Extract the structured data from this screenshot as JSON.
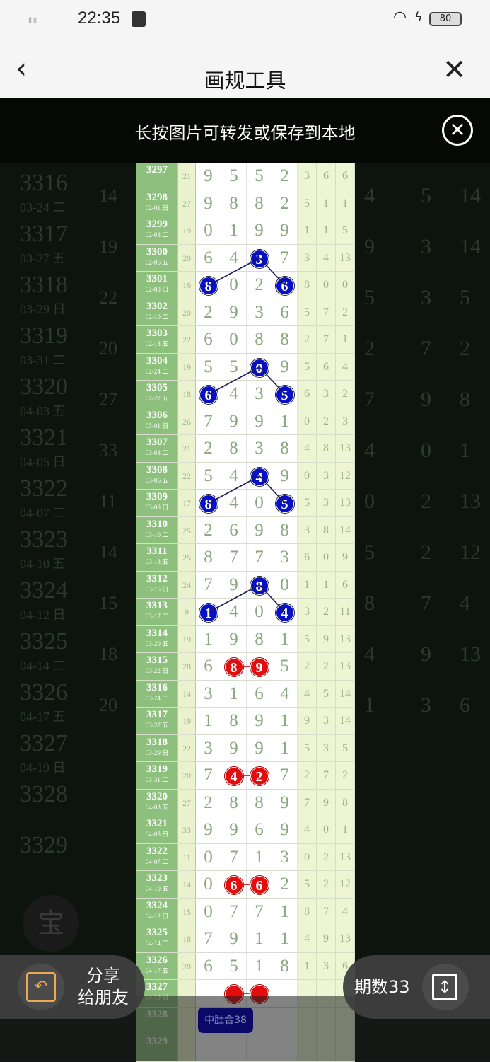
{
  "status_bar": {
    "signal": "ııl ııl",
    "time": "22:35",
    "battery": "80"
  },
  "nav": {
    "back_icon": "chevron-left",
    "title": "画规工具",
    "close_icon": "close-x"
  },
  "toast": {
    "text": "长按图片可转发或保存到本地",
    "close_icon": "circle-x"
  },
  "colors": {
    "issue_col": "#8cc07c",
    "blue_ball": "#0710c4",
    "red_ball": "#e30d0d",
    "zhong_button": "#0a0a66",
    "share_icon": "#f0a850"
  },
  "table": {
    "rows": [
      {
        "issue": "3297",
        "date": "",
        "sum": "21",
        "digits": [
          "9",
          "5",
          "5",
          "2"
        ],
        "extra": [
          "3",
          "6",
          "6"
        ]
      },
      {
        "issue": "3298",
        "date": "02-01 日",
        "sum": "27",
        "digits": [
          "9",
          "8",
          "8",
          "2"
        ],
        "extra": [
          "5",
          "1",
          "1"
        ]
      },
      {
        "issue": "3299",
        "date": "02-03 二",
        "sum": "19",
        "digits": [
          "0",
          "1",
          "9",
          "9"
        ],
        "extra": [
          "1",
          "1",
          "5"
        ]
      },
      {
        "issue": "3300",
        "date": "02-06 五",
        "sum": "20",
        "digits": [
          "6",
          "4",
          "3",
          "7"
        ],
        "extra": [
          "3",
          "4",
          "13"
        ]
      },
      {
        "issue": "3301",
        "date": "02-08 日",
        "sum": "16",
        "digits": [
          "8",
          "0",
          "2",
          "6"
        ],
        "extra": [
          "8",
          "0",
          "0"
        ]
      },
      {
        "issue": "3302",
        "date": "02-10 二",
        "sum": "20",
        "digits": [
          "2",
          "9",
          "3",
          "6"
        ],
        "extra": [
          "5",
          "7",
          "2"
        ]
      },
      {
        "issue": "3303",
        "date": "02-13 五",
        "sum": "22",
        "digits": [
          "6",
          "0",
          "8",
          "8"
        ],
        "extra": [
          "2",
          "7",
          "1"
        ]
      },
      {
        "issue": "3304",
        "date": "02-24 二",
        "sum": "19",
        "digits": [
          "5",
          "5",
          "0",
          "9"
        ],
        "extra": [
          "5",
          "6",
          "4"
        ]
      },
      {
        "issue": "3305",
        "date": "02-27 五",
        "sum": "18",
        "digits": [
          "6",
          "4",
          "3",
          "5"
        ],
        "extra": [
          "6",
          "3",
          "2"
        ]
      },
      {
        "issue": "3306",
        "date": "03-01 日",
        "sum": "26",
        "digits": [
          "7",
          "9",
          "9",
          "1"
        ],
        "extra": [
          "0",
          "2",
          "3"
        ]
      },
      {
        "issue": "3307",
        "date": "03-03 二",
        "sum": "21",
        "digits": [
          "2",
          "8",
          "3",
          "8"
        ],
        "extra": [
          "4",
          "8",
          "13"
        ]
      },
      {
        "issue": "3308",
        "date": "03-06 五",
        "sum": "22",
        "digits": [
          "5",
          "4",
          "4",
          "9"
        ],
        "extra": [
          "0",
          "3",
          "12"
        ]
      },
      {
        "issue": "3309",
        "date": "03-08 日",
        "sum": "17",
        "digits": [
          "8",
          "4",
          "0",
          "5"
        ],
        "extra": [
          "5",
          "3",
          "13"
        ]
      },
      {
        "issue": "3310",
        "date": "03-10 二",
        "sum": "25",
        "digits": [
          "2",
          "6",
          "9",
          "8"
        ],
        "extra": [
          "3",
          "8",
          "14"
        ]
      },
      {
        "issue": "3311",
        "date": "03-13 五",
        "sum": "25",
        "digits": [
          "8",
          "7",
          "7",
          "3"
        ],
        "extra": [
          "6",
          "0",
          "9"
        ]
      },
      {
        "issue": "3312",
        "date": "03-15 日",
        "sum": "24",
        "digits": [
          "7",
          "9",
          "8",
          "0"
        ],
        "extra": [
          "1",
          "1",
          "6"
        ]
      },
      {
        "issue": "3313",
        "date": "03-17 二",
        "sum": "9",
        "digits": [
          "1",
          "4",
          "0",
          "4"
        ],
        "extra": [
          "3",
          "2",
          "11"
        ]
      },
      {
        "issue": "3314",
        "date": "03-20 五",
        "sum": "19",
        "digits": [
          "1",
          "9",
          "8",
          "1"
        ],
        "extra": [
          "5",
          "9",
          "13"
        ]
      },
      {
        "issue": "3315",
        "date": "03-22 日",
        "sum": "28",
        "digits": [
          "6",
          "8",
          "9",
          "5"
        ],
        "extra": [
          "2",
          "2",
          "13"
        ]
      },
      {
        "issue": "3316",
        "date": "03-24 二",
        "sum": "14",
        "digits": [
          "3",
          "1",
          "6",
          "4"
        ],
        "extra": [
          "4",
          "5",
          "14"
        ]
      },
      {
        "issue": "3317",
        "date": "03-27 五",
        "sum": "19",
        "digits": [
          "1",
          "8",
          "9",
          "1"
        ],
        "extra": [
          "9",
          "3",
          "14"
        ]
      },
      {
        "issue": "3318",
        "date": "03-29 日",
        "sum": "22",
        "digits": [
          "3",
          "9",
          "9",
          "1"
        ],
        "extra": [
          "5",
          "3",
          "5"
        ]
      },
      {
        "issue": "3319",
        "date": "03-31 二",
        "sum": "20",
        "digits": [
          "7",
          "4",
          "2",
          "7"
        ],
        "extra": [
          "2",
          "7",
          "2"
        ]
      },
      {
        "issue": "3320",
        "date": "04-03 五",
        "sum": "27",
        "digits": [
          "2",
          "8",
          "8",
          "9"
        ],
        "extra": [
          "7",
          "9",
          "8"
        ]
      },
      {
        "issue": "3321",
        "date": "04-05 日",
        "sum": "33",
        "digits": [
          "9",
          "9",
          "6",
          "9"
        ],
        "extra": [
          "4",
          "0",
          "1"
        ]
      },
      {
        "issue": "3322",
        "date": "04-07 二",
        "sum": "11",
        "digits": [
          "0",
          "7",
          "1",
          "3"
        ],
        "extra": [
          "0",
          "2",
          "13"
        ]
      },
      {
        "issue": "3323",
        "date": "04-10 五",
        "sum": "14",
        "digits": [
          "0",
          "6",
          "6",
          "2"
        ],
        "extra": [
          "5",
          "2",
          "12"
        ]
      },
      {
        "issue": "3324",
        "date": "04-12 日",
        "sum": "15",
        "digits": [
          "0",
          "7",
          "7",
          "1"
        ],
        "extra": [
          "8",
          "7",
          "4"
        ]
      },
      {
        "issue": "3325",
        "date": "04-14 二",
        "sum": "18",
        "digits": [
          "7",
          "9",
          "1",
          "1"
        ],
        "extra": [
          "4",
          "9",
          "13"
        ]
      },
      {
        "issue": "3326",
        "date": "04-17 五",
        "sum": "20",
        "digits": [
          "6",
          "5",
          "1",
          "8"
        ],
        "extra": [
          "1",
          "3",
          "6"
        ]
      },
      {
        "issue": "3327",
        "date": "04-19 日",
        "sum": "",
        "digits": [
          "",
          "",
          "",
          ""
        ],
        "extra": [
          "",
          "",
          ""
        ]
      },
      {
        "issue": "3328",
        "date": "",
        "sum": "",
        "digits": [
          "",
          "",
          "",
          ""
        ],
        "extra": [
          "",
          "",
          ""
        ]
      },
      {
        "issue": "3329",
        "date": "",
        "sum": "",
        "digits": [
          "",
          "",
          "",
          ""
        ],
        "extra": [
          "",
          "",
          ""
        ]
      }
    ],
    "blue_marks": [
      [
        3,
        2
      ],
      [
        4,
        0
      ],
      [
        4,
        3
      ],
      [
        7,
        2
      ],
      [
        8,
        0
      ],
      [
        8,
        3
      ],
      [
        11,
        2
      ],
      [
        12,
        0
      ],
      [
        12,
        3
      ],
      [
        15,
        2
      ],
      [
        16,
        0
      ],
      [
        16,
        3
      ]
    ],
    "blue_links": [
      [
        [
          3,
          2
        ],
        [
          4,
          0
        ]
      ],
      [
        [
          3,
          2
        ],
        [
          4,
          3
        ]
      ],
      [
        [
          7,
          2
        ],
        [
          8,
          0
        ]
      ],
      [
        [
          7,
          2
        ],
        [
          8,
          3
        ]
      ],
      [
        [
          11,
          2
        ],
        [
          12,
          0
        ]
      ],
      [
        [
          11,
          2
        ],
        [
          12,
          3
        ]
      ],
      [
        [
          15,
          2
        ],
        [
          16,
          0
        ]
      ],
      [
        [
          15,
          2
        ],
        [
          16,
          3
        ]
      ]
    ],
    "red_pairs": [
      [
        18,
        1,
        2
      ],
      [
        22,
        1,
        2
      ],
      [
        26,
        1,
        2
      ],
      [
        30,
        1,
        2
      ]
    ]
  },
  "background": {
    "badge": "宝"
  },
  "zhong_button": "中肚合38",
  "share": {
    "label_line1": "分享",
    "label_line2": "给朋友",
    "icon": "share-reply"
  },
  "period": {
    "label": "期数33",
    "icon": "vertical-resize"
  }
}
